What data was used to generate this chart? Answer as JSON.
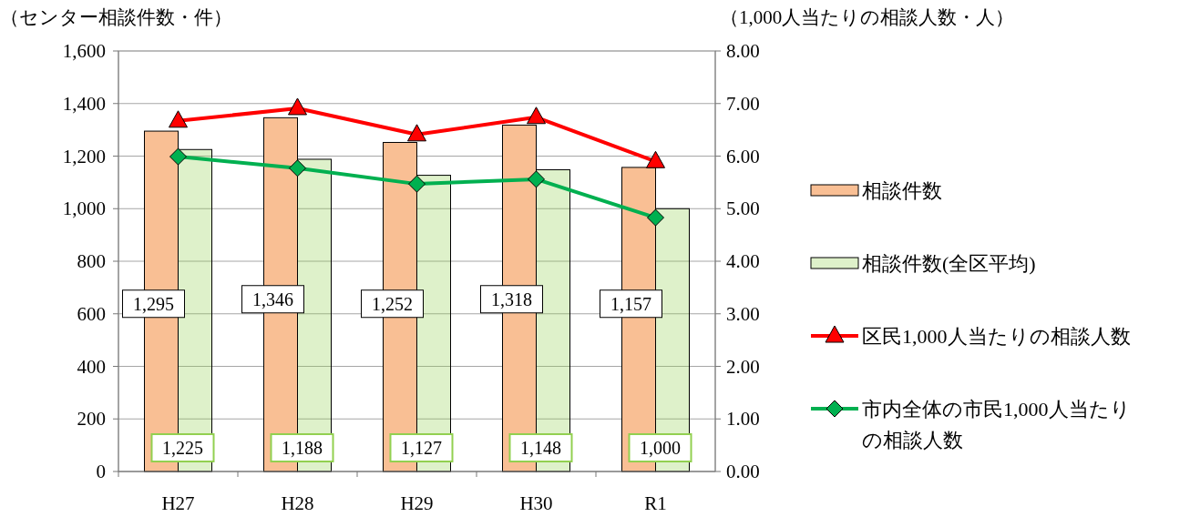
{
  "chart_data": {
    "type": "bar",
    "ylabel": "（センター相談件数・件）",
    "y2label": "（1,000人当たりの相談人数・人）",
    "categories": [
      "H27",
      "H28",
      "H29",
      "H30",
      "R1"
    ],
    "ylim": [
      0,
      1600
    ],
    "yticks": [
      0,
      200,
      400,
      600,
      800,
      {
        "value": 1000,
        "label": "1,000"
      },
      {
        "value": 1200,
        "label": "1,200"
      },
      {
        "value": 1400,
        "label": "1,400"
      },
      {
        "value": 1600,
        "label": "1,600"
      }
    ],
    "y2lim": [
      0,
      8
    ],
    "y2ticks": [
      {
        "value": 0,
        "label": "0.00"
      },
      {
        "value": 1,
        "label": "1.00"
      },
      {
        "value": 2,
        "label": "2.00"
      },
      {
        "value": 3,
        "label": "3.00"
      },
      {
        "value": 4,
        "label": "4.00"
      },
      {
        "value": 5,
        "label": "5.00"
      },
      {
        "value": 6,
        "label": "6.00"
      },
      {
        "value": 7,
        "label": "7.00"
      },
      {
        "value": 8,
        "label": "8.00"
      }
    ],
    "grid": "y",
    "legend": "right",
    "series": [
      {
        "name": "相談件数",
        "color": "#f9bf94",
        "values": [
          1295,
          1346,
          1252,
          1318,
          1157
        ],
        "value_labels": [
          "1,295",
          "1,346",
          "1,252",
          "1,318",
          "1,157"
        ]
      },
      {
        "name": "相談件数(全区平均)",
        "color": "#92d050",
        "values": [
          1225,
          1188,
          1127,
          1148,
          1000
        ],
        "value_labels": [
          "1,225",
          "1,188",
          "1,127",
          "1,148",
          "1,000"
        ]
      },
      {
        "name": "区民1,000人当たりの相談人数",
        "type": "line",
        "axis": "y2",
        "color": "#ff0000",
        "marker": "triangle",
        "values": [
          6.67,
          6.91,
          6.41,
          6.74,
          5.9
        ]
      },
      {
        "name": "市内全体の市民1,000人当たりの相談人数",
        "type": "line",
        "axis": "y2",
        "color": "#00b050",
        "marker": "diamond",
        "values": [
          5.99,
          5.77,
          5.47,
          5.56,
          4.83
        ]
      }
    ]
  }
}
